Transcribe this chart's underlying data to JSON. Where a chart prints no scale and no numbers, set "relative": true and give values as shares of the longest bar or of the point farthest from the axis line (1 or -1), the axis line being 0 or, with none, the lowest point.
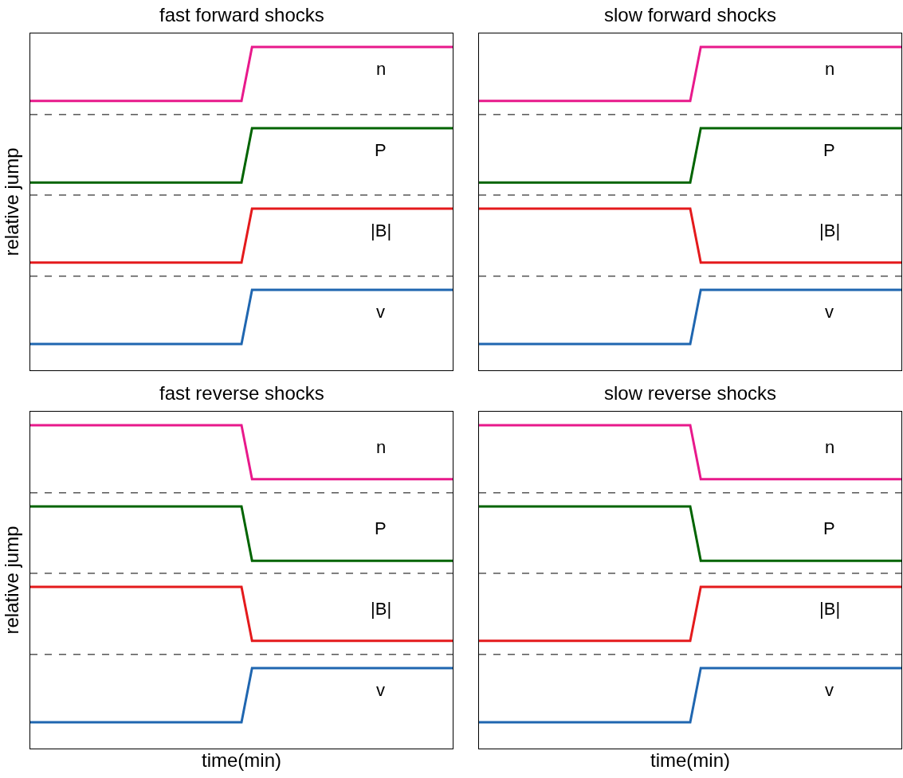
{
  "chart_data": [
    {
      "type": "line",
      "relative": true,
      "title": "fast forward shocks",
      "ylabel": "relative jump",
      "tick_labels": false,
      "legend": false,
      "categories": [
        null,
        null,
        null,
        null,
        null,
        null,
        null,
        null,
        null,
        null,
        null,
        null,
        null,
        null,
        null,
        null,
        null,
        null,
        null,
        null,
        null,
        null,
        null,
        null,
        null,
        null,
        null,
        null,
        null,
        null,
        null,
        null,
        null,
        null,
        null,
        null,
        null,
        null,
        null,
        null,
        null
      ],
      "series": [
        {
          "name": "n",
          "color": "#e8198b",
          "values": [
            0.833,
            0.833,
            0.833,
            0.833,
            0.833,
            0.833,
            0.833,
            0.833,
            0.833,
            0.833,
            0.833,
            0.833,
            0.833,
            0.833,
            0.833,
            0.833,
            0.833,
            0.833,
            0.833,
            0.833,
            0.833,
            1,
            1,
            1,
            1,
            1,
            1,
            1,
            1,
            1,
            1,
            1,
            1,
            1,
            1,
            1,
            1,
            1,
            1,
            1,
            1
          ]
        },
        {
          "name": "P",
          "color": "#006400",
          "values": [
            0.581,
            0.581,
            0.581,
            0.581,
            0.581,
            0.581,
            0.581,
            0.581,
            0.581,
            0.581,
            0.581,
            0.581,
            0.581,
            0.581,
            0.581,
            0.581,
            0.581,
            0.581,
            0.581,
            0.581,
            0.581,
            0.749,
            0.749,
            0.749,
            0.749,
            0.749,
            0.749,
            0.749,
            0.749,
            0.749,
            0.749,
            0.749,
            0.749,
            0.749,
            0.749,
            0.749,
            0.749,
            0.749,
            0.749,
            0.749,
            0.749
          ]
        },
        {
          "name": "|B|",
          "color": "#e41a1c",
          "values": [
            0.333,
            0.333,
            0.333,
            0.333,
            0.333,
            0.333,
            0.333,
            0.333,
            0.333,
            0.333,
            0.333,
            0.333,
            0.333,
            0.333,
            0.333,
            0.333,
            0.333,
            0.333,
            0.333,
            0.333,
            0.333,
            0.5,
            0.5,
            0.5,
            0.5,
            0.5,
            0.5,
            0.5,
            0.5,
            0.5,
            0.5,
            0.5,
            0.5,
            0.5,
            0.5,
            0.5,
            0.5,
            0.5,
            0.5,
            0.5,
            0.5
          ]
        },
        {
          "name": "v",
          "color": "#1f66b0",
          "values": [
            0.081,
            0.081,
            0.081,
            0.081,
            0.081,
            0.081,
            0.081,
            0.081,
            0.081,
            0.081,
            0.081,
            0.081,
            0.081,
            0.081,
            0.081,
            0.081,
            0.081,
            0.081,
            0.081,
            0.081,
            0.081,
            0.249,
            0.249,
            0.249,
            0.249,
            0.249,
            0.249,
            0.249,
            0.249,
            0.249,
            0.249,
            0.249,
            0.249,
            0.249,
            0.249,
            0.249,
            0.249,
            0.249,
            0.249,
            0.249,
            0.249
          ]
        }
      ],
      "ref_lines": [
        {
          "axis": "y",
          "value": 0.791,
          "color": "#000000",
          "line_style": "dashed"
        },
        {
          "axis": "y",
          "value": 0.542,
          "color": "#000000",
          "line_style": "dashed"
        },
        {
          "axis": "y",
          "value": 0.291,
          "color": "#000000",
          "line_style": "dashed"
        }
      ]
    },
    {
      "type": "line",
      "relative": true,
      "title": "slow forward shocks",
      "tick_labels": false,
      "legend": false,
      "categories": [
        null,
        null,
        null,
        null,
        null,
        null,
        null,
        null,
        null,
        null,
        null,
        null,
        null,
        null,
        null,
        null,
        null,
        null,
        null,
        null,
        null,
        null,
        null,
        null,
        null,
        null,
        null,
        null,
        null,
        null,
        null,
        null,
        null,
        null,
        null,
        null,
        null,
        null,
        null,
        null,
        null
      ],
      "series": [
        {
          "name": "n",
          "color": "#e8198b",
          "values": [
            0.833,
            0.833,
            0.833,
            0.833,
            0.833,
            0.833,
            0.833,
            0.833,
            0.833,
            0.833,
            0.833,
            0.833,
            0.833,
            0.833,
            0.833,
            0.833,
            0.833,
            0.833,
            0.833,
            0.833,
            0.833,
            1,
            1,
            1,
            1,
            1,
            1,
            1,
            1,
            1,
            1,
            1,
            1,
            1,
            1,
            1,
            1,
            1,
            1,
            1,
            1
          ]
        },
        {
          "name": "P",
          "color": "#006400",
          "values": [
            0.581,
            0.581,
            0.581,
            0.581,
            0.581,
            0.581,
            0.581,
            0.581,
            0.581,
            0.581,
            0.581,
            0.581,
            0.581,
            0.581,
            0.581,
            0.581,
            0.581,
            0.581,
            0.581,
            0.581,
            0.581,
            0.749,
            0.749,
            0.749,
            0.749,
            0.749,
            0.749,
            0.749,
            0.749,
            0.749,
            0.749,
            0.749,
            0.749,
            0.749,
            0.749,
            0.749,
            0.749,
            0.749,
            0.749,
            0.749,
            0.749
          ]
        },
        {
          "name": "|B|",
          "color": "#e41a1c",
          "values": [
            0.5,
            0.5,
            0.5,
            0.5,
            0.5,
            0.5,
            0.5,
            0.5,
            0.5,
            0.5,
            0.5,
            0.5,
            0.5,
            0.5,
            0.5,
            0.5,
            0.5,
            0.5,
            0.5,
            0.5,
            0.5,
            0.333,
            0.333,
            0.333,
            0.333,
            0.333,
            0.333,
            0.333,
            0.333,
            0.333,
            0.333,
            0.333,
            0.333,
            0.333,
            0.333,
            0.333,
            0.333,
            0.333,
            0.333,
            0.333,
            0.333
          ]
        },
        {
          "name": "v",
          "color": "#1f66b0",
          "values": [
            0.081,
            0.081,
            0.081,
            0.081,
            0.081,
            0.081,
            0.081,
            0.081,
            0.081,
            0.081,
            0.081,
            0.081,
            0.081,
            0.081,
            0.081,
            0.081,
            0.081,
            0.081,
            0.081,
            0.081,
            0.081,
            0.249,
            0.249,
            0.249,
            0.249,
            0.249,
            0.249,
            0.249,
            0.249,
            0.249,
            0.249,
            0.249,
            0.249,
            0.249,
            0.249,
            0.249,
            0.249,
            0.249,
            0.249,
            0.249,
            0.249
          ]
        }
      ],
      "ref_lines": [
        {
          "axis": "y",
          "value": 0.791,
          "color": "#000000",
          "line_style": "dashed"
        },
        {
          "axis": "y",
          "value": 0.542,
          "color": "#000000",
          "line_style": "dashed"
        },
        {
          "axis": "y",
          "value": 0.291,
          "color": "#000000",
          "line_style": "dashed"
        }
      ]
    },
    {
      "type": "line",
      "relative": true,
      "title": "fast reverse shocks",
      "ylabel": "relative jump",
      "xlabel": "time(min)",
      "tick_labels": false,
      "legend": false,
      "categories": [
        null,
        null,
        null,
        null,
        null,
        null,
        null,
        null,
        null,
        null,
        null,
        null,
        null,
        null,
        null,
        null,
        null,
        null,
        null,
        null,
        null,
        null,
        null,
        null,
        null,
        null,
        null,
        null,
        null,
        null,
        null,
        null,
        null,
        null,
        null,
        null,
        null,
        null,
        null,
        null,
        null
      ],
      "series": [
        {
          "name": "n",
          "color": "#e8198b",
          "values": [
            1,
            1,
            1,
            1,
            1,
            1,
            1,
            1,
            1,
            1,
            1,
            1,
            1,
            1,
            1,
            1,
            1,
            1,
            1,
            1,
            1,
            0.833,
            0.833,
            0.833,
            0.833,
            0.833,
            0.833,
            0.833,
            0.833,
            0.833,
            0.833,
            0.833,
            0.833,
            0.833,
            0.833,
            0.833,
            0.833,
            0.833,
            0.833,
            0.833,
            0.833
          ]
        },
        {
          "name": "P",
          "color": "#006400",
          "values": [
            0.749,
            0.749,
            0.749,
            0.749,
            0.749,
            0.749,
            0.749,
            0.749,
            0.749,
            0.749,
            0.749,
            0.749,
            0.749,
            0.749,
            0.749,
            0.749,
            0.749,
            0.749,
            0.749,
            0.749,
            0.749,
            0.581,
            0.581,
            0.581,
            0.581,
            0.581,
            0.581,
            0.581,
            0.581,
            0.581,
            0.581,
            0.581,
            0.581,
            0.581,
            0.581,
            0.581,
            0.581,
            0.581,
            0.581,
            0.581,
            0.581
          ]
        },
        {
          "name": "|B|",
          "color": "#e41a1c",
          "values": [
            0.5,
            0.5,
            0.5,
            0.5,
            0.5,
            0.5,
            0.5,
            0.5,
            0.5,
            0.5,
            0.5,
            0.5,
            0.5,
            0.5,
            0.5,
            0.5,
            0.5,
            0.5,
            0.5,
            0.5,
            0.5,
            0.333,
            0.333,
            0.333,
            0.333,
            0.333,
            0.333,
            0.333,
            0.333,
            0.333,
            0.333,
            0.333,
            0.333,
            0.333,
            0.333,
            0.333,
            0.333,
            0.333,
            0.333,
            0.333,
            0.333
          ]
        },
        {
          "name": "v",
          "color": "#1f66b0",
          "values": [
            0.081,
            0.081,
            0.081,
            0.081,
            0.081,
            0.081,
            0.081,
            0.081,
            0.081,
            0.081,
            0.081,
            0.081,
            0.081,
            0.081,
            0.081,
            0.081,
            0.081,
            0.081,
            0.081,
            0.081,
            0.081,
            0.249,
            0.249,
            0.249,
            0.249,
            0.249,
            0.249,
            0.249,
            0.249,
            0.249,
            0.249,
            0.249,
            0.249,
            0.249,
            0.249,
            0.249,
            0.249,
            0.249,
            0.249,
            0.249,
            0.249
          ]
        }
      ],
      "ref_lines": [
        {
          "axis": "y",
          "value": 0.791,
          "color": "#000000",
          "line_style": "dashed"
        },
        {
          "axis": "y",
          "value": 0.542,
          "color": "#000000",
          "line_style": "dashed"
        },
        {
          "axis": "y",
          "value": 0.291,
          "color": "#000000",
          "line_style": "dashed"
        }
      ]
    },
    {
      "type": "line",
      "relative": true,
      "title": "slow reverse shocks",
      "xlabel": "time(min)",
      "tick_labels": false,
      "legend": false,
      "categories": [
        null,
        null,
        null,
        null,
        null,
        null,
        null,
        null,
        null,
        null,
        null,
        null,
        null,
        null,
        null,
        null,
        null,
        null,
        null,
        null,
        null,
        null,
        null,
        null,
        null,
        null,
        null,
        null,
        null,
        null,
        null,
        null,
        null,
        null,
        null,
        null,
        null,
        null,
        null,
        null,
        null
      ],
      "series": [
        {
          "name": "n",
          "color": "#e8198b",
          "values": [
            1,
            1,
            1,
            1,
            1,
            1,
            1,
            1,
            1,
            1,
            1,
            1,
            1,
            1,
            1,
            1,
            1,
            1,
            1,
            1,
            1,
            0.833,
            0.833,
            0.833,
            0.833,
            0.833,
            0.833,
            0.833,
            0.833,
            0.833,
            0.833,
            0.833,
            0.833,
            0.833,
            0.833,
            0.833,
            0.833,
            0.833,
            0.833,
            0.833,
            0.833
          ]
        },
        {
          "name": "P",
          "color": "#006400",
          "values": [
            0.749,
            0.749,
            0.749,
            0.749,
            0.749,
            0.749,
            0.749,
            0.749,
            0.749,
            0.749,
            0.749,
            0.749,
            0.749,
            0.749,
            0.749,
            0.749,
            0.749,
            0.749,
            0.749,
            0.749,
            0.749,
            0.581,
            0.581,
            0.581,
            0.581,
            0.581,
            0.581,
            0.581,
            0.581,
            0.581,
            0.581,
            0.581,
            0.581,
            0.581,
            0.581,
            0.581,
            0.581,
            0.581,
            0.581,
            0.581,
            0.581
          ]
        },
        {
          "name": "|B|",
          "color": "#e41a1c",
          "values": [
            0.333,
            0.333,
            0.333,
            0.333,
            0.333,
            0.333,
            0.333,
            0.333,
            0.333,
            0.333,
            0.333,
            0.333,
            0.333,
            0.333,
            0.333,
            0.333,
            0.333,
            0.333,
            0.333,
            0.333,
            0.333,
            0.5,
            0.5,
            0.5,
            0.5,
            0.5,
            0.5,
            0.5,
            0.5,
            0.5,
            0.5,
            0.5,
            0.5,
            0.5,
            0.5,
            0.5,
            0.5,
            0.5,
            0.5,
            0.5,
            0.5
          ]
        },
        {
          "name": "v",
          "color": "#1f66b0",
          "values": [
            0.081,
            0.081,
            0.081,
            0.081,
            0.081,
            0.081,
            0.081,
            0.081,
            0.081,
            0.081,
            0.081,
            0.081,
            0.081,
            0.081,
            0.081,
            0.081,
            0.081,
            0.081,
            0.081,
            0.081,
            0.081,
            0.249,
            0.249,
            0.249,
            0.249,
            0.249,
            0.249,
            0.249,
            0.249,
            0.249,
            0.249,
            0.249,
            0.249,
            0.249,
            0.249,
            0.249,
            0.249,
            0.249,
            0.249,
            0.249,
            0.249
          ]
        }
      ],
      "ref_lines": [
        {
          "axis": "y",
          "value": 0.791,
          "color": "#000000",
          "line_style": "dashed"
        },
        {
          "axis": "y",
          "value": 0.542,
          "color": "#000000",
          "line_style": "dashed"
        },
        {
          "axis": "y",
          "value": 0.291,
          "color": "#000000",
          "line_style": "dashed"
        }
      ]
    }
  ]
}
